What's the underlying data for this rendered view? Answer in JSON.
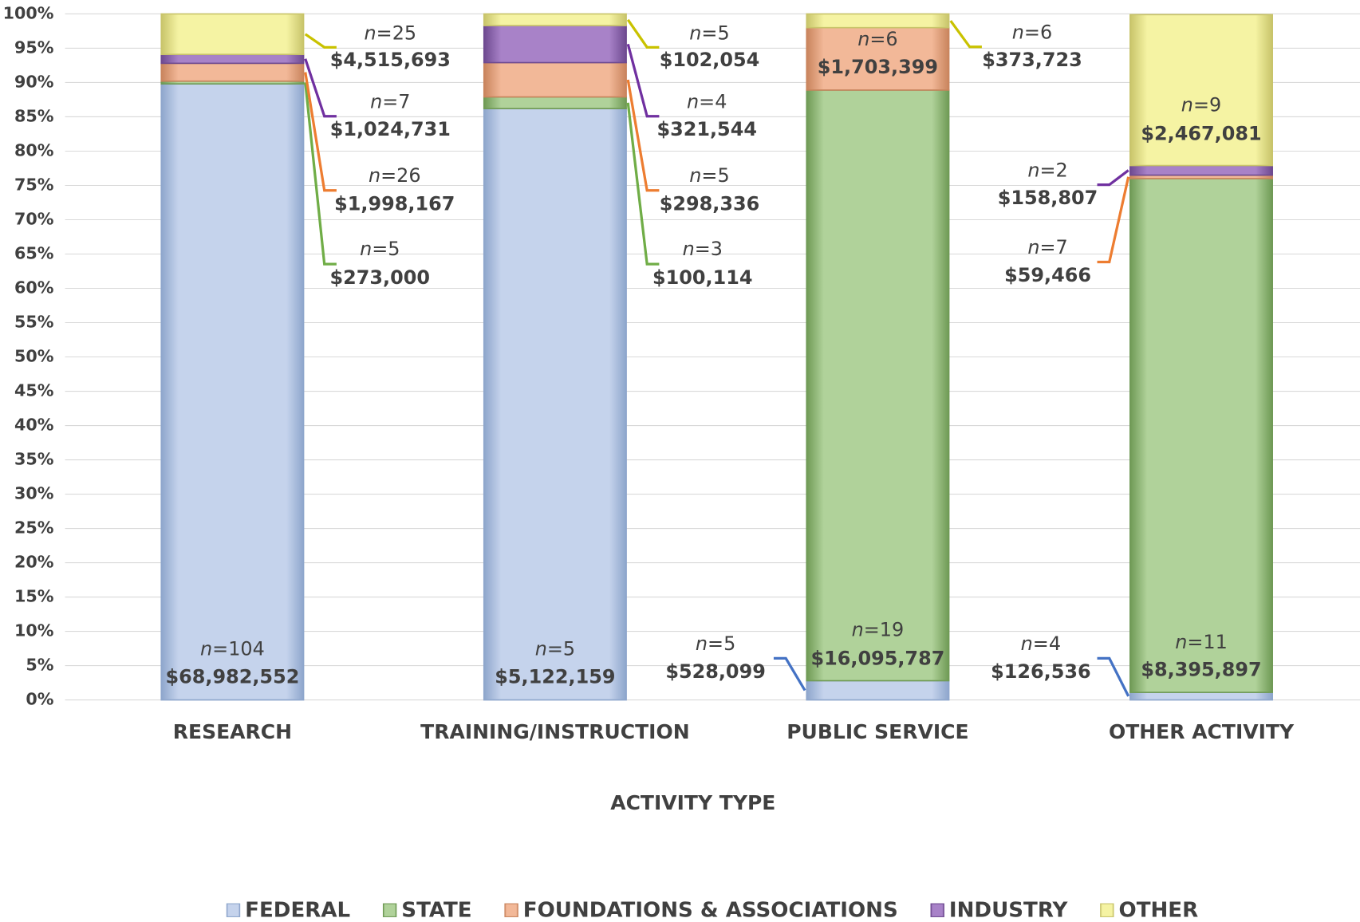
{
  "chart_data": {
    "type": "stacked_bar_100",
    "x_label": "ACTIVITY TYPE",
    "categories": [
      "RESEARCH",
      "TRAINING/INSTRUCTION",
      "PUBLIC SERVICE",
      "OTHER ACTIVITY"
    ],
    "count_symbol": "n",
    "count_sep": "=",
    "series": [
      {
        "name": "FEDERAL",
        "color": "#c5d3ec",
        "edge": "#8ea6cc",
        "line": "#4472c4",
        "values": [
          89.8,
          86.2,
          2.8,
          1.1
        ],
        "counts": [
          104,
          5,
          5,
          4
        ],
        "amounts": [
          "$68,982,552",
          "$5,122,159",
          "$528,099",
          "$126,536"
        ]
      },
      {
        "name": "STATE",
        "color": "#b0d29a",
        "edge": "#6f9a55",
        "line": "#70ad47",
        "values": [
          0.4,
          1.7,
          86.1,
          74.9
        ],
        "counts": [
          5,
          3,
          19,
          11
        ],
        "amounts": [
          "$273,000",
          "$100,114",
          "$16,095,787",
          "$8,395,897"
        ]
      },
      {
        "name": "FOUNDATIONS & ASSOCIATIONS",
        "color": "#f2b898",
        "edge": "#c9845d",
        "line": "#ed7d31",
        "values": [
          2.6,
          5.0,
          9.1,
          0.5
        ],
        "counts": [
          26,
          5,
          6,
          7
        ],
        "amounts": [
          "$1,998,167",
          "$298,336",
          "$1,703,399",
          "$59,466"
        ]
      },
      {
        "name": "INDUSTRY",
        "color": "#a882c8",
        "edge": "#6e4a90",
        "line": "#7030a0",
        "values": [
          1.3,
          5.4,
          null,
          1.4
        ],
        "counts": [
          7,
          4,
          null,
          2
        ],
        "amounts": [
          "$1,024,731",
          "$321,544",
          null,
          "$158,807"
        ]
      },
      {
        "name": "OTHER",
        "color": "#f5f3a3",
        "edge": "#c8c46a",
        "line": "#c9c200",
        "values": [
          5.9,
          1.7,
          2.0,
          22.0
        ],
        "counts": [
          25,
          5,
          6,
          9
        ],
        "amounts": [
          "$4,515,693",
          "$102,054",
          "$373,723",
          "$2,467,081"
        ]
      }
    ],
    "ylim": [
      0,
      100
    ],
    "yticks": [
      {
        "value": 0,
        "label": "0%"
      },
      {
        "value": 5,
        "label": "5%"
      },
      {
        "value": 10,
        "label": "10%"
      },
      {
        "value": 15,
        "label": "15%"
      },
      {
        "value": 20,
        "label": "20%"
      },
      {
        "value": 25,
        "label": "25%"
      },
      {
        "value": 30,
        "label": "30%"
      },
      {
        "value": 35,
        "label": "35%"
      },
      {
        "value": 40,
        "label": "40%"
      },
      {
        "value": 45,
        "label": "45%"
      },
      {
        "value": 50,
        "label": "50%"
      },
      {
        "value": 55,
        "label": "55%"
      },
      {
        "value": 60,
        "label": "60%"
      },
      {
        "value": 65,
        "label": "65%"
      },
      {
        "value": 70,
        "label": "70%"
      },
      {
        "value": 75,
        "label": "75%"
      },
      {
        "value": 80,
        "label": "80%"
      },
      {
        "value": 85,
        "label": "85%"
      },
      {
        "value": 90,
        "label": "90%"
      },
      {
        "value": 95,
        "label": "95%"
      },
      {
        "value": 100,
        "label": "100%"
      }
    ],
    "grid": true,
    "legend": "bottom"
  }
}
